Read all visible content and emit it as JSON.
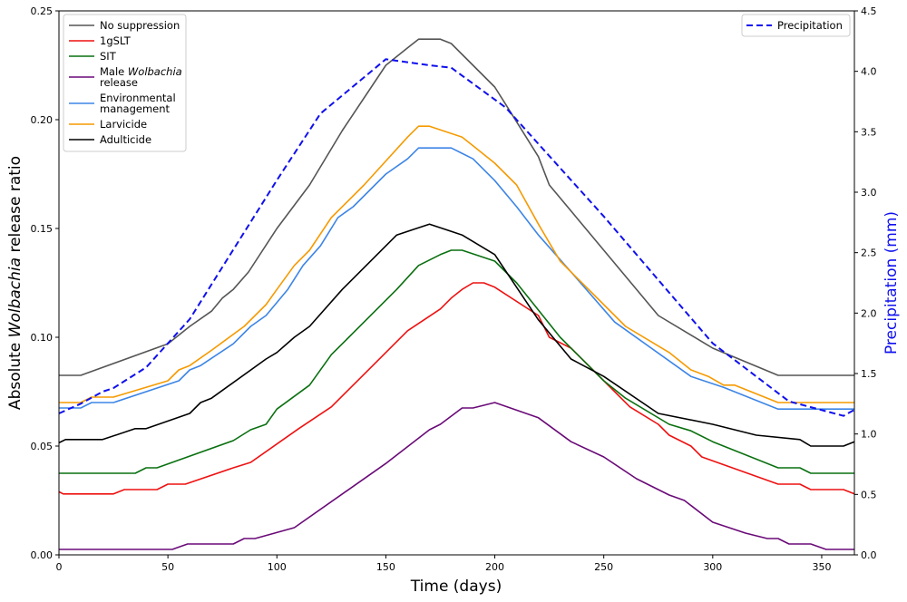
{
  "chart_data": {
    "type": "line",
    "xlabel": "Time (days)",
    "ylabel": {
      "pre": "Absolute ",
      "italic": "Wolbachia",
      "post": " release ratio"
    },
    "y2label": "Precipitation (mm)",
    "xlim": [
      0,
      365
    ],
    "ylim": [
      0,
      0.25
    ],
    "y2lim": [
      0,
      4.5
    ],
    "xticks": [
      "0",
      "50",
      "100",
      "150",
      "200",
      "250",
      "300",
      "350"
    ],
    "yticks": [
      "0.00",
      "0.05",
      "0.10",
      "0.15",
      "0.20",
      "0.25"
    ],
    "y2ticks": [
      "0.0",
      "0.5",
      "1.0",
      "1.5",
      "2.0",
      "2.5",
      "3.0",
      "3.5",
      "4.0",
      "4.5"
    ],
    "grid": false,
    "legend_placement": "top-left",
    "legend2_placement": "top-right",
    "series": [
      {
        "name": "No suppression",
        "color": "#555555",
        "axis": "left",
        "points": [
          [
            0,
            0.0825
          ],
          [
            10,
            0.0825
          ],
          [
            50,
            0.097
          ],
          [
            60,
            0.105
          ],
          [
            70,
            0.112
          ],
          [
            75,
            0.118
          ],
          [
            80,
            0.122
          ],
          [
            87,
            0.13
          ],
          [
            100,
            0.15
          ],
          [
            115,
            0.17
          ],
          [
            130,
            0.195
          ],
          [
            150,
            0.225
          ],
          [
            160,
            0.233
          ],
          [
            165,
            0.237
          ],
          [
            175,
            0.237
          ],
          [
            180,
            0.235
          ],
          [
            185,
            0.23
          ],
          [
            200,
            0.215
          ],
          [
            205,
            0.207
          ],
          [
            220,
            0.183
          ],
          [
            225,
            0.17
          ],
          [
            250,
            0.14
          ],
          [
            275,
            0.11
          ],
          [
            300,
            0.095
          ],
          [
            330,
            0.0825
          ],
          [
            365,
            0.0825
          ]
        ]
      },
      {
        "name": "1gSLT",
        "color": "#ee1111",
        "axis": "left",
        "points": [
          [
            0,
            0.029
          ],
          [
            2,
            0.028
          ],
          [
            25,
            0.028
          ],
          [
            30,
            0.03
          ],
          [
            45,
            0.03
          ],
          [
            50,
            0.0325
          ],
          [
            58,
            0.0325
          ],
          [
            80,
            0.04
          ],
          [
            88,
            0.0425
          ],
          [
            110,
            0.058
          ],
          [
            125,
            0.068
          ],
          [
            140,
            0.083
          ],
          [
            150,
            0.093
          ],
          [
            160,
            0.103
          ],
          [
            175,
            0.113
          ],
          [
            180,
            0.118
          ],
          [
            185,
            0.122
          ],
          [
            190,
            0.125
          ],
          [
            195,
            0.125
          ],
          [
            200,
            0.123
          ],
          [
            220,
            0.11
          ],
          [
            225,
            0.1
          ],
          [
            235,
            0.095
          ],
          [
            250,
            0.08
          ],
          [
            255,
            0.075
          ],
          [
            262,
            0.068
          ],
          [
            275,
            0.06
          ],
          [
            280,
            0.055
          ],
          [
            290,
            0.05
          ],
          [
            295,
            0.045
          ],
          [
            330,
            0.0325
          ],
          [
            340,
            0.0325
          ],
          [
            345,
            0.03
          ],
          [
            360,
            0.03
          ],
          [
            365,
            0.028
          ]
        ]
      },
      {
        "name": "SIT",
        "color": "#0a7010",
        "axis": "left",
        "points": [
          [
            0,
            0.0375
          ],
          [
            35,
            0.0375
          ],
          [
            40,
            0.04
          ],
          [
            45,
            0.04
          ],
          [
            80,
            0.0525
          ],
          [
            88,
            0.0575
          ],
          [
            95,
            0.06
          ],
          [
            100,
            0.067
          ],
          [
            115,
            0.078
          ],
          [
            125,
            0.092
          ],
          [
            135,
            0.102
          ],
          [
            145,
            0.112
          ],
          [
            155,
            0.122
          ],
          [
            165,
            0.133
          ],
          [
            175,
            0.138
          ],
          [
            180,
            0.14
          ],
          [
            185,
            0.14
          ],
          [
            200,
            0.135
          ],
          [
            210,
            0.125
          ],
          [
            230,
            0.1
          ],
          [
            250,
            0.08
          ],
          [
            260,
            0.072
          ],
          [
            280,
            0.06
          ],
          [
            290,
            0.057
          ],
          [
            300,
            0.052
          ],
          [
            330,
            0.04
          ],
          [
            340,
            0.04
          ],
          [
            345,
            0.0375
          ],
          [
            365,
            0.0375
          ]
        ]
      },
      {
        "name_pre": "Male ",
        "name_italic": "Wolbachia",
        "name_line2": "release",
        "color": "#6a0a78",
        "axis": "left",
        "points": [
          [
            0,
            0.0025
          ],
          [
            52,
            0.0025
          ],
          [
            59,
            0.005
          ],
          [
            80,
            0.005
          ],
          [
            85,
            0.0075
          ],
          [
            90,
            0.0075
          ],
          [
            108,
            0.0125
          ],
          [
            150,
            0.042
          ],
          [
            170,
            0.0575
          ],
          [
            175,
            0.06
          ],
          [
            185,
            0.0675
          ],
          [
            190,
            0.0675
          ],
          [
            200,
            0.07
          ],
          [
            220,
            0.063
          ],
          [
            235,
            0.052
          ],
          [
            250,
            0.045
          ],
          [
            265,
            0.035
          ],
          [
            270,
            0.0325
          ],
          [
            280,
            0.0275
          ],
          [
            287,
            0.025
          ],
          [
            300,
            0.015
          ],
          [
            315,
            0.01
          ],
          [
            325,
            0.0075
          ],
          [
            330,
            0.0075
          ],
          [
            335,
            0.005
          ],
          [
            345,
            0.005
          ],
          [
            352,
            0.0025
          ],
          [
            365,
            0.0025
          ]
        ]
      },
      {
        "name": "Environmental",
        "name_line2": "management",
        "color": "#3d85e6",
        "axis": "left",
        "points": [
          [
            0,
            0.0675
          ],
          [
            10,
            0.0675
          ],
          [
            15,
            0.07
          ],
          [
            25,
            0.07
          ],
          [
            55,
            0.08
          ],
          [
            60,
            0.085
          ],
          [
            65,
            0.087
          ],
          [
            80,
            0.097
          ],
          [
            88,
            0.105
          ],
          [
            95,
            0.11
          ],
          [
            105,
            0.122
          ],
          [
            112,
            0.133
          ],
          [
            120,
            0.142
          ],
          [
            128,
            0.155
          ],
          [
            135,
            0.16
          ],
          [
            145,
            0.17
          ],
          [
            150,
            0.175
          ],
          [
            160,
            0.182
          ],
          [
            165,
            0.187
          ],
          [
            180,
            0.187
          ],
          [
            190,
            0.182
          ],
          [
            200,
            0.172
          ],
          [
            210,
            0.16
          ],
          [
            220,
            0.147
          ],
          [
            235,
            0.13
          ],
          [
            255,
            0.107
          ],
          [
            290,
            0.082
          ],
          [
            305,
            0.077
          ],
          [
            330,
            0.067
          ],
          [
            365,
            0.067
          ]
        ]
      },
      {
        "name": "Larvicide",
        "color": "#f59a00",
        "axis": "left",
        "points": [
          [
            0,
            0.07
          ],
          [
            10,
            0.07
          ],
          [
            15,
            0.0725
          ],
          [
            25,
            0.0725
          ],
          [
            50,
            0.08
          ],
          [
            55,
            0.085
          ],
          [
            60,
            0.087
          ],
          [
            70,
            0.094
          ],
          [
            85,
            0.105
          ],
          [
            95,
            0.115
          ],
          [
            100,
            0.122
          ],
          [
            108,
            0.133
          ],
          [
            115,
            0.14
          ],
          [
            125,
            0.155
          ],
          [
            140,
            0.17
          ],
          [
            160,
            0.192
          ],
          [
            165,
            0.197
          ],
          [
            170,
            0.197
          ],
          [
            185,
            0.192
          ],
          [
            190,
            0.188
          ],
          [
            200,
            0.18
          ],
          [
            210,
            0.17
          ],
          [
            220,
            0.152
          ],
          [
            230,
            0.135
          ],
          [
            245,
            0.12
          ],
          [
            260,
            0.105
          ],
          [
            280,
            0.093
          ],
          [
            290,
            0.085
          ],
          [
            298,
            0.082
          ],
          [
            305,
            0.078
          ],
          [
            310,
            0.078
          ],
          [
            330,
            0.07
          ],
          [
            365,
            0.07
          ]
        ]
      },
      {
        "name": "Adulticide",
        "color": "#000000",
        "axis": "left",
        "points": [
          [
            0,
            0.0515
          ],
          [
            3,
            0.053
          ],
          [
            20,
            0.053
          ],
          [
            35,
            0.058
          ],
          [
            40,
            0.058
          ],
          [
            60,
            0.065
          ],
          [
            65,
            0.07
          ],
          [
            70,
            0.072
          ],
          [
            95,
            0.09
          ],
          [
            100,
            0.093
          ],
          [
            108,
            0.1
          ],
          [
            115,
            0.105
          ],
          [
            130,
            0.122
          ],
          [
            150,
            0.142
          ],
          [
            155,
            0.147
          ],
          [
            170,
            0.152
          ],
          [
            185,
            0.147
          ],
          [
            200,
            0.138
          ],
          [
            220,
            0.108
          ],
          [
            235,
            0.09
          ],
          [
            250,
            0.082
          ],
          [
            275,
            0.065
          ],
          [
            300,
            0.06
          ],
          [
            320,
            0.055
          ],
          [
            340,
            0.053
          ],
          [
            345,
            0.05
          ],
          [
            360,
            0.05
          ],
          [
            365,
            0.052
          ]
        ]
      },
      {
        "name": "Precipitation",
        "color": "#1010ee",
        "axis": "right",
        "style": "dashed",
        "points": [
          [
            0,
            1.17
          ],
          [
            10,
            1.25
          ],
          [
            20,
            1.35
          ],
          [
            25,
            1.38
          ],
          [
            40,
            1.55
          ],
          [
            60,
            1.95
          ],
          [
            100,
            3.1
          ],
          [
            120,
            3.65
          ],
          [
            150,
            4.1
          ],
          [
            170,
            4.05
          ],
          [
            180,
            4.03
          ],
          [
            205,
            3.7
          ],
          [
            220,
            3.4
          ],
          [
            250,
            2.8
          ],
          [
            300,
            1.75
          ],
          [
            335,
            1.27
          ],
          [
            360,
            1.15
          ],
          [
            365,
            1.2
          ]
        ]
      }
    ]
  }
}
